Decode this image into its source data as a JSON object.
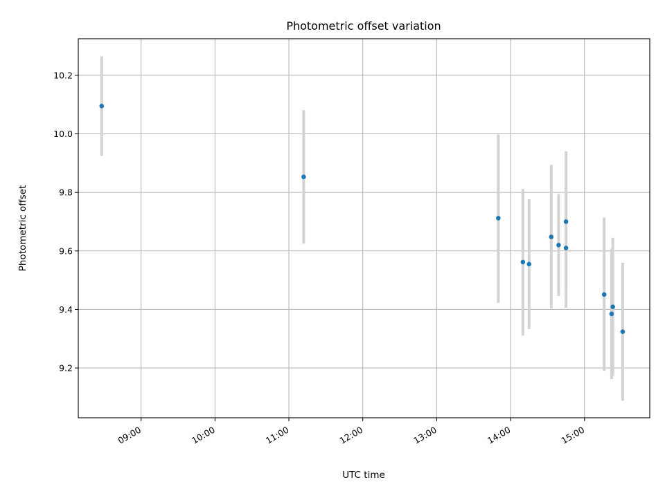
{
  "chart_data": {
    "type": "scatter",
    "title": "Photometric offset variation",
    "xlabel": "UTC time",
    "ylabel": "Photometric offset",
    "x_axis": "time",
    "xlim": [
      "08:09",
      "15:53"
    ],
    "ylim": [
      9.03,
      10.325
    ],
    "xticks": [
      "09:00",
      "10:00",
      "11:00",
      "12:00",
      "13:00",
      "14:00",
      "15:00"
    ],
    "yticks": [
      "9.2",
      "9.4",
      "9.6",
      "9.8",
      "10.0",
      "10.2"
    ],
    "grid": true,
    "colors": {
      "points": "#1f77b4",
      "error_bars": "#d3d3d3"
    },
    "points": [
      {
        "time": "08:28",
        "y": 10.095,
        "err_low": 9.925,
        "err_high": 10.265
      },
      {
        "time": "11:12",
        "y": 9.853,
        "err_low": 9.625,
        "err_high": 10.081
      },
      {
        "time": "13:50",
        "y": 9.712,
        "err_low": 9.423,
        "err_high": 9.998
      },
      {
        "time": "14:10",
        "y": 9.562,
        "err_low": 9.311,
        "err_high": 9.812
      },
      {
        "time": "14:15",
        "y": 9.555,
        "err_low": 9.333,
        "err_high": 9.777
      },
      {
        "time": "14:33",
        "y": 9.648,
        "err_low": 9.404,
        "err_high": 9.894
      },
      {
        "time": "14:39",
        "y": 9.62,
        "err_low": 9.446,
        "err_high": 9.795
      },
      {
        "time": "14:45",
        "y": 9.61,
        "err_low": 9.406,
        "err_high": 9.814
      },
      {
        "time": "14:45",
        "y": 9.7,
        "err_low": 9.462,
        "err_high": 9.94
      },
      {
        "time": "15:16",
        "y": 9.451,
        "err_low": 9.19,
        "err_high": 9.714
      },
      {
        "time": "15:22",
        "y": 9.385,
        "err_low": 9.162,
        "err_high": 9.608
      },
      {
        "time": "15:23",
        "y": 9.409,
        "err_low": 9.173,
        "err_high": 9.645
      },
      {
        "time": "15:31",
        "y": 9.324,
        "err_low": 9.088,
        "err_high": 9.56
      }
    ]
  }
}
